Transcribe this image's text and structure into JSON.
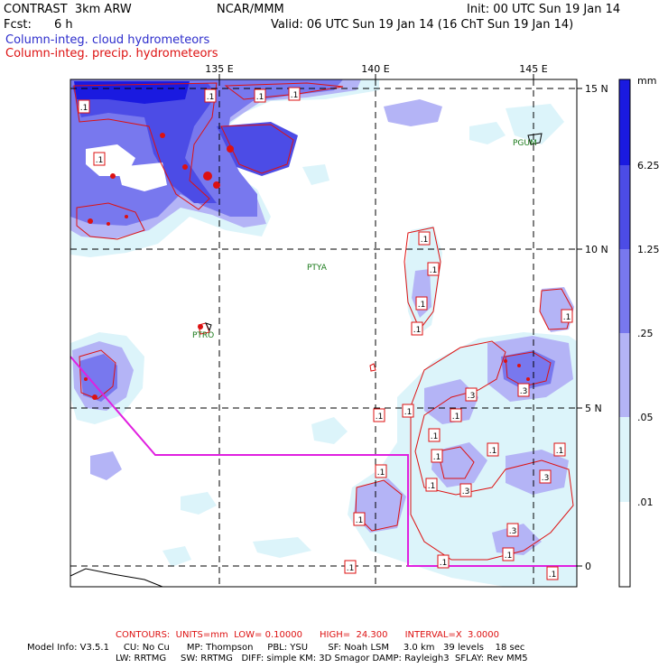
{
  "header": {
    "model": "CONTRAST  3km ARW",
    "center": "NCAR/MMM",
    "init": "Init: 00 UTC Sun 19 Jan 14",
    "fcst_label": "Fcst:",
    "fcst_value": "6 h",
    "valid": "Valid: 06 UTC Sun 19 Jan 14 (16 ChT Sun 19 Jan 14)",
    "field_cloud": "Column-integ. cloud hydrometeors",
    "field_precip": "Column-integ. precip. hydrometeors"
  },
  "map": {
    "lon_labels": [
      "135 E",
      "140 E",
      "145 E"
    ],
    "lat_labels": [
      "15 N",
      "10 N",
      "5 N",
      "0"
    ],
    "stations": [
      {
        "name": "PGUM"
      },
      {
        "name": "PTYA"
      },
      {
        "name": "PTRO"
      }
    ],
    "contour_labels": [
      ".1",
      ".1",
      ".1",
      ".1",
      ".1",
      ".1",
      ".1",
      ".1",
      ".1",
      ".1",
      ".3",
      ".3",
      ".1",
      ".1",
      ".1",
      ".1",
      ".1",
      ".3",
      ".1",
      ".3",
      ".3",
      ".1",
      ".1",
      ".1",
      ".1",
      ".1",
      ".1",
      ".1",
      ".1"
    ]
  },
  "legend": {
    "unit": "mm",
    "levels": [
      "6.25",
      "1.25",
      ".25",
      ".05",
      ".01"
    ],
    "colors": [
      "#1a1ae0",
      "#4c4ce6",
      "#7878ee",
      "#b4b4f6",
      "#dcf4fa",
      "#ffffff"
    ]
  },
  "footer": {
    "contours": "CONTOURS:  UNITS=mm  LOW= 0.10000      HIGH=  24.300      INTERVAL=X  3.0000",
    "line1": "Model Info: V3.5.1     CU: No Cu      MP: Thompson     PBL: YSU       SF: Noah LSM     3.0 km   39 levels    18 sec",
    "line2": "LW: RRTMG     SW: RRTMG   DIFF: simple KM: 3D Smagor DAMP: Rayleigh3  SFLAY: Rev MM5"
  }
}
